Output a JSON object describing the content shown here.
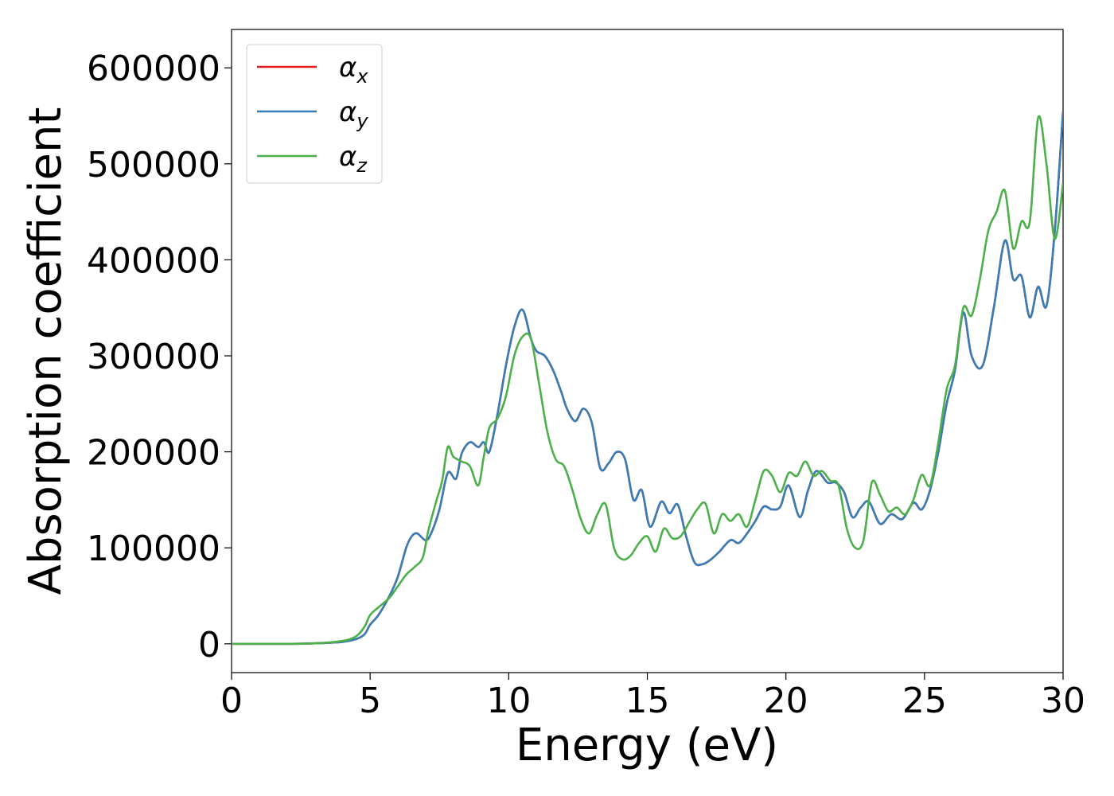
{
  "chart_data": {
    "type": "line",
    "title": "",
    "xlabel": "Energy (eV)",
    "ylabel": "Absorption coefficient",
    "xlim": [
      0,
      30
    ],
    "ylim": [
      -30000,
      640000
    ],
    "grid": false,
    "legend_position": "top-left",
    "x_ticks": [
      0,
      5,
      10,
      15,
      20,
      25,
      30
    ],
    "x_tick_labels": [
      "0",
      "5",
      "10",
      "15",
      "20",
      "25",
      "30"
    ],
    "y_ticks": [
      0,
      100000,
      200000,
      300000,
      400000,
      500000,
      600000
    ],
    "y_tick_labels": [
      "0",
      "100000",
      "200000",
      "300000",
      "400000",
      "500000",
      "600000"
    ],
    "series": [
      {
        "name": "α",
        "subscript": "x",
        "color": "#e41a1c",
        "x": [
          0,
          2,
          3,
          4,
          4.5,
          4.8,
          5.0,
          5.3,
          5.7,
          6.0,
          6.3,
          6.5,
          6.7,
          7.0,
          7.2,
          7.5,
          7.8,
          8.1,
          8.3,
          8.6,
          8.9,
          9.1,
          9.3,
          9.6,
          9.9,
          10.2,
          10.5,
          10.8,
          11.0,
          11.3,
          11.6,
          11.9,
          12.1,
          12.4,
          12.7,
          13.0,
          13.3,
          13.6,
          13.9,
          14.2,
          14.5,
          14.8,
          15.1,
          15.5,
          15.8,
          16.1,
          16.4,
          16.7,
          17.0,
          17.3,
          17.6,
          18.0,
          18.3,
          18.6,
          18.9,
          19.2,
          19.5,
          19.8,
          20.1,
          20.5,
          20.8,
          21.1,
          21.5,
          21.8,
          22.1,
          22.4,
          22.7,
          23.0,
          23.4,
          23.8,
          24.2,
          24.6,
          24.9,
          25.2,
          25.5,
          25.8,
          26.1,
          26.4,
          26.7,
          27.1,
          27.5,
          27.9,
          28.2,
          28.5,
          28.8,
          29.1,
          29.4,
          29.7,
          30.0
        ],
        "y": [
          0,
          0,
          500,
          2000,
          5000,
          10000,
          20000,
          30000,
          50000,
          70000,
          100000,
          112000,
          115000,
          108000,
          115000,
          140000,
          178000,
          172000,
          198000,
          210000,
          205000,
          210000,
          200000,
          240000,
          290000,
          330000,
          348000,
          318000,
          305000,
          300000,
          285000,
          262000,
          245000,
          232000,
          245000,
          230000,
          183000,
          188000,
          200000,
          192000,
          150000,
          160000,
          122000,
          148000,
          136000,
          145000,
          112000,
          85000,
          83000,
          88000,
          96000,
          108000,
          105000,
          115000,
          128000,
          143000,
          140000,
          143000,
          165000,
          132000,
          160000,
          180000,
          168000,
          168000,
          158000,
          132000,
          142000,
          148000,
          125000,
          135000,
          130000,
          147000,
          140000,
          160000,
          200000,
          250000,
          285000,
          345000,
          300000,
          290000,
          350000,
          420000,
          380000,
          383000,
          340000,
          372000,
          352000,
          430000,
          555000
        ]
      },
      {
        "name": "α",
        "subscript": "y",
        "color": "#377eb8",
        "x": [
          0,
          2,
          3,
          4,
          4.5,
          4.8,
          5.0,
          5.3,
          5.7,
          6.0,
          6.3,
          6.5,
          6.7,
          7.0,
          7.2,
          7.5,
          7.8,
          8.1,
          8.3,
          8.6,
          8.9,
          9.1,
          9.3,
          9.6,
          9.9,
          10.2,
          10.5,
          10.8,
          11.0,
          11.3,
          11.6,
          11.9,
          12.1,
          12.4,
          12.7,
          13.0,
          13.3,
          13.6,
          13.9,
          14.2,
          14.5,
          14.8,
          15.1,
          15.5,
          15.8,
          16.1,
          16.4,
          16.7,
          17.0,
          17.3,
          17.6,
          18.0,
          18.3,
          18.6,
          18.9,
          19.2,
          19.5,
          19.8,
          20.1,
          20.5,
          20.8,
          21.1,
          21.5,
          21.8,
          22.1,
          22.4,
          22.7,
          23.0,
          23.4,
          23.8,
          24.2,
          24.6,
          24.9,
          25.2,
          25.5,
          25.8,
          26.1,
          26.4,
          26.7,
          27.1,
          27.5,
          27.9,
          28.2,
          28.5,
          28.8,
          29.1,
          29.4,
          29.7,
          30.0
        ],
        "y": [
          0,
          0,
          500,
          2000,
          5000,
          10000,
          20000,
          30000,
          50000,
          70000,
          100000,
          112000,
          115000,
          108000,
          115000,
          140000,
          178000,
          172000,
          198000,
          210000,
          205000,
          210000,
          200000,
          240000,
          290000,
          330000,
          348000,
          318000,
          305000,
          300000,
          285000,
          262000,
          245000,
          232000,
          245000,
          230000,
          183000,
          188000,
          200000,
          192000,
          150000,
          160000,
          122000,
          148000,
          136000,
          145000,
          112000,
          85000,
          83000,
          88000,
          96000,
          108000,
          105000,
          115000,
          128000,
          143000,
          140000,
          143000,
          165000,
          132000,
          160000,
          180000,
          168000,
          168000,
          158000,
          132000,
          142000,
          148000,
          125000,
          135000,
          130000,
          147000,
          140000,
          160000,
          200000,
          250000,
          285000,
          345000,
          300000,
          290000,
          350000,
          420000,
          380000,
          383000,
          340000,
          372000,
          352000,
          430000,
          555000
        ]
      },
      {
        "name": "α",
        "subscript": "z",
        "color": "#4daf4a",
        "x": [
          0,
          2,
          3,
          4,
          4.5,
          4.8,
          5.0,
          5.3,
          5.7,
          6.0,
          6.3,
          6.6,
          6.9,
          7.1,
          7.4,
          7.6,
          7.8,
          8.0,
          8.3,
          8.6,
          8.9,
          9.1,
          9.3,
          9.6,
          9.9,
          10.2,
          10.5,
          10.8,
          11.1,
          11.4,
          11.7,
          12.0,
          12.3,
          12.6,
          12.9,
          13.2,
          13.5,
          13.8,
          14.1,
          14.4,
          14.7,
          15.0,
          15.3,
          15.6,
          15.9,
          16.2,
          16.5,
          16.8,
          17.1,
          17.4,
          17.7,
          18.0,
          18.3,
          18.6,
          18.9,
          19.2,
          19.5,
          19.8,
          20.1,
          20.4,
          20.7,
          21.0,
          21.3,
          21.6,
          21.9,
          22.2,
          22.5,
          22.8,
          23.1,
          23.4,
          23.7,
          24.0,
          24.3,
          24.6,
          24.9,
          25.2,
          25.5,
          25.8,
          26.1,
          26.4,
          26.7,
          27.0,
          27.3,
          27.6,
          27.9,
          28.2,
          28.5,
          28.8,
          29.1,
          29.4,
          29.7,
          30.0
        ],
        "y": [
          0,
          0,
          500,
          3000,
          8000,
          18000,
          30000,
          38000,
          48000,
          60000,
          72000,
          80000,
          90000,
          118000,
          150000,
          170000,
          205000,
          195000,
          190000,
          185000,
          165000,
          195000,
          225000,
          235000,
          258000,
          300000,
          320000,
          318000,
          270000,
          220000,
          192000,
          185000,
          160000,
          130000,
          115000,
          135000,
          145000,
          100000,
          88000,
          92000,
          105000,
          112000,
          96000,
          120000,
          110000,
          112000,
          126000,
          140000,
          146000,
          115000,
          135000,
          128000,
          135000,
          122000,
          150000,
          180000,
          175000,
          158000,
          178000,
          175000,
          190000,
          175000,
          180000,
          170000,
          165000,
          120000,
          100000,
          108000,
          168000,
          155000,
          138000,
          142000,
          135000,
          150000,
          176000,
          165000,
          210000,
          265000,
          290000,
          350000,
          342000,
          380000,
          430000,
          450000,
          472000,
          412000,
          440000,
          440000,
          548000,
          500000,
          422000,
          480000
        ]
      }
    ]
  }
}
